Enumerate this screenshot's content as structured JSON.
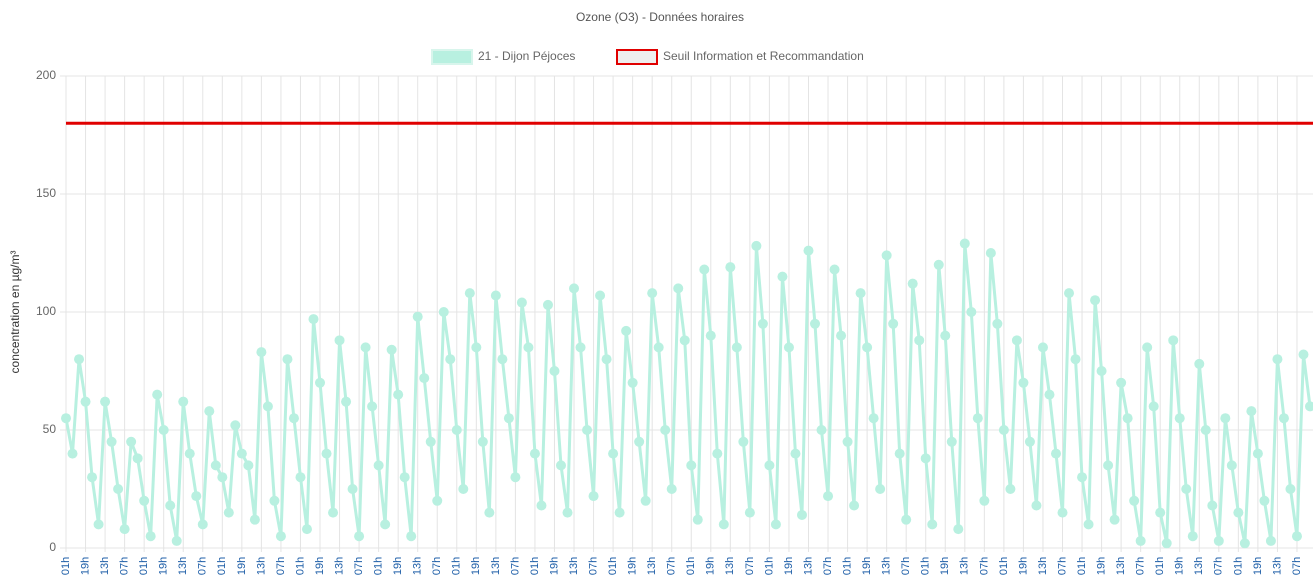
{
  "chart_data": {
    "type": "line",
    "title": "Ozone (O3) - Données horaires",
    "y_label": "concentration en µg/m³",
    "categories": [
      "01h",
      null,
      null,
      "19h",
      null,
      null,
      "13h",
      null,
      null,
      "07h",
      null,
      null,
      "01h",
      null,
      null,
      "19h",
      null,
      null,
      "13h",
      null,
      null,
      "07h",
      null,
      null,
      "01h",
      null,
      null,
      "19h",
      null,
      null,
      "13h",
      null,
      null,
      "07h",
      null,
      null,
      "01h",
      null,
      null,
      "19h",
      null,
      null,
      "13h",
      null,
      null,
      "07h",
      null,
      null,
      "01h",
      null,
      null,
      "19h",
      null,
      null,
      "13h",
      null,
      null,
      "07h",
      null,
      null,
      "01h",
      null,
      null,
      "19h",
      null,
      null,
      "13h",
      null,
      null,
      "07h",
      null,
      null,
      "01h",
      null,
      null,
      "19h",
      null,
      null,
      "13h",
      null,
      null,
      "07h",
      null,
      null,
      "01h",
      null,
      null,
      "19h",
      null,
      null,
      "13h",
      null,
      null,
      "07h",
      null,
      null,
      "01h",
      null,
      null,
      "19h",
      null,
      null,
      "13h",
      null,
      null,
      "07h",
      null,
      null,
      "01h",
      null,
      null,
      "19h",
      null,
      null,
      "13h",
      null,
      null,
      "07h",
      null,
      null,
      "01h",
      null,
      null,
      "19h",
      null,
      null,
      "13h",
      null,
      null,
      "07h",
      null,
      null,
      "01h",
      null,
      null,
      "19h",
      null,
      null,
      "13h",
      null,
      null,
      "07h",
      null,
      null,
      "01h",
      null,
      null,
      "19h",
      null,
      null,
      "13h",
      null,
      null,
      "07h",
      null,
      null,
      "01h",
      null,
      null,
      "19h",
      null,
      null,
      "13h",
      null,
      null,
      "07h",
      null,
      null,
      "01h",
      null,
      null,
      "19h",
      null,
      null,
      "13h",
      null,
      null,
      "07h",
      null,
      null,
      "01h",
      null,
      null,
      "19h",
      null,
      null,
      "13h",
      null,
      null,
      "07h",
      null,
      null
    ],
    "series": [
      {
        "name": "21 - Dijon Péjoces",
        "color": "#b8f0e0",
        "values": [
          55,
          40,
          80,
          62,
          30,
          10,
          62,
          45,
          25,
          8,
          45,
          38,
          20,
          5,
          65,
          50,
          18,
          3,
          62,
          40,
          22,
          10,
          58,
          35,
          30,
          15,
          52,
          40,
          35,
          12,
          83,
          60,
          20,
          5,
          80,
          55,
          30,
          8,
          97,
          70,
          40,
          15,
          88,
          62,
          25,
          5,
          85,
          60,
          35,
          10,
          84,
          65,
          30,
          5,
          98,
          72,
          45,
          20,
          100,
          80,
          50,
          25,
          108,
          85,
          45,
          15,
          107,
          80,
          55,
          30,
          104,
          85,
          40,
          18,
          103,
          75,
          35,
          15,
          110,
          85,
          50,
          22,
          107,
          80,
          40,
          15,
          92,
          70,
          45,
          20,
          108,
          85,
          50,
          25,
          110,
          88,
          35,
          12,
          118,
          90,
          40,
          10,
          119,
          85,
          45,
          15,
          128,
          95,
          35,
          10,
          115,
          85,
          40,
          14,
          126,
          95,
          50,
          22,
          118,
          90,
          45,
          18,
          108,
          85,
          55,
          25,
          124,
          95,
          40,
          12,
          112,
          88,
          38,
          10,
          120,
          90,
          45,
          8,
          129,
          100,
          55,
          20,
          125,
          95,
          50,
          25,
          88,
          70,
          45,
          18,
          85,
          65,
          40,
          15,
          108,
          80,
          30,
          10,
          105,
          75,
          35,
          12,
          70,
          55,
          20,
          3,
          85,
          60,
          15,
          2,
          88,
          55,
          25,
          5,
          78,
          50,
          18,
          3,
          55,
          35,
          15,
          2,
          58,
          40,
          20,
          3,
          80,
          55,
          25,
          5,
          82,
          60
        ]
      }
    ],
    "threshold": {
      "name": "Seuil Information et Recommandation",
      "color": "#e00000",
      "value": 180
    },
    "ylim": [
      0,
      200
    ],
    "yticks": [
      0,
      50,
      100,
      150,
      200
    ],
    "grid": true
  }
}
